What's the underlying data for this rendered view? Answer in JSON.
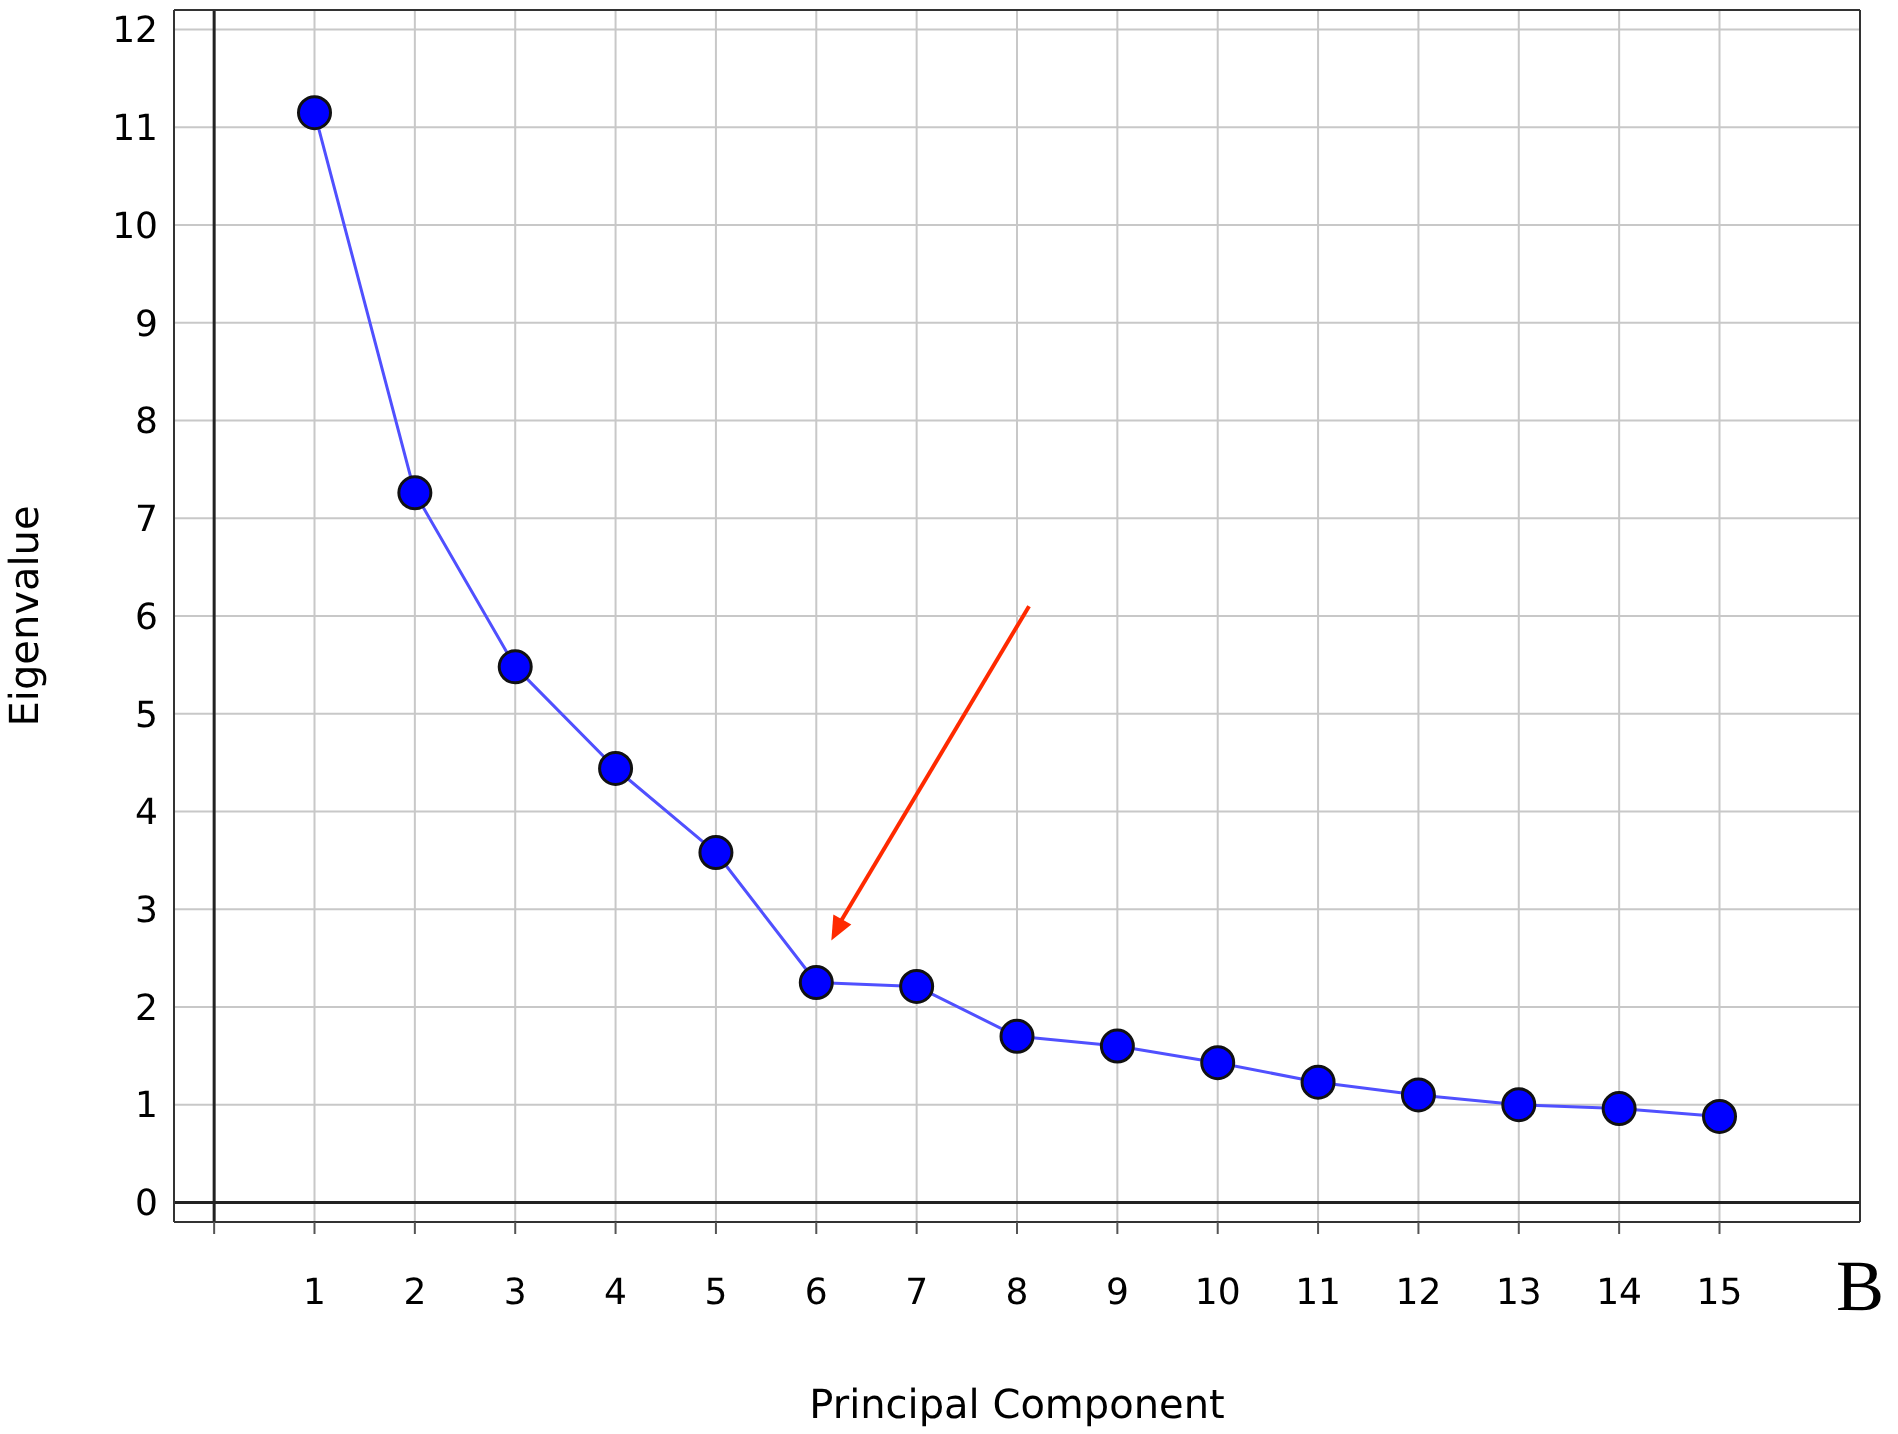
{
  "chart_data": {
    "type": "line",
    "xlabel": "Principal Component",
    "ylabel": "Eigenvalue",
    "x": [
      1,
      2,
      3,
      4,
      5,
      6,
      7,
      8,
      9,
      10,
      11,
      12,
      13,
      14,
      15
    ],
    "series": [
      {
        "color": "#0000ff",
        "values": [
          11.15,
          7.26,
          5.48,
          4.44,
          3.58,
          2.25,
          2.21,
          1.7,
          1.6,
          1.43,
          1.23,
          1.1,
          1.0,
          0.96,
          0.88
        ]
      }
    ],
    "xlim": [
      -0.4,
      16.4
    ],
    "xticks": [
      {
        "value": 0,
        "label": null
      },
      1,
      2,
      3,
      4,
      5,
      6,
      7,
      8,
      9,
      10,
      11,
      12,
      13,
      14,
      15
    ],
    "ylim": [
      -0.2,
      12.2
    ],
    "yticks": [
      0,
      1,
      2,
      3,
      4,
      5,
      6,
      7,
      8,
      9,
      10,
      11,
      12
    ],
    "grid": true,
    "marker": "circle",
    "line_style": "solid",
    "annotations": [
      "B"
    ]
  }
}
